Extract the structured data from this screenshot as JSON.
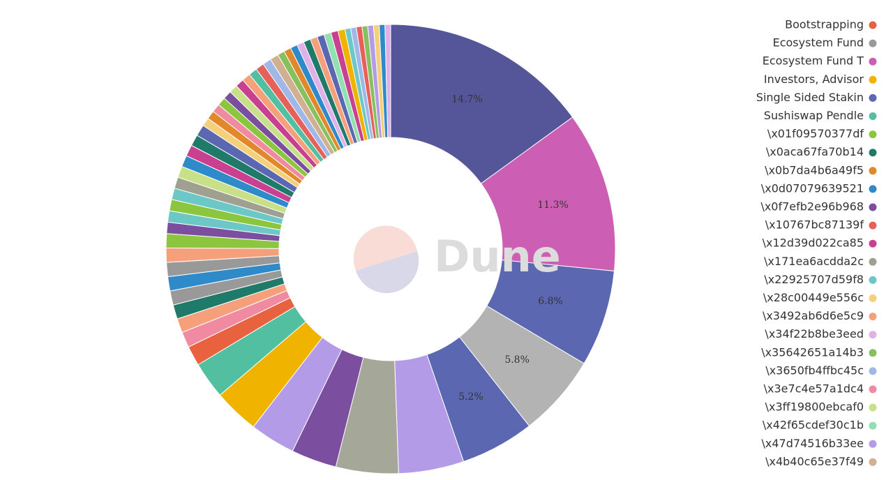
{
  "chart_data": {
    "type": "donut",
    "watermark": "Dune",
    "values": [
      14.7,
      11.3,
      6.8,
      5.8,
      5.2,
      4.6,
      4.4,
      3.2,
      3.2,
      3.2,
      2.6,
      1.4,
      1.1,
      1.0,
      1.0,
      1.0,
      1.0,
      1.0,
      1.0,
      1.0,
      0.8,
      0.8,
      0.8,
      0.8,
      0.8,
      0.8,
      0.8,
      0.8,
      0.8,
      0.8,
      0.6,
      0.6,
      0.6,
      0.6,
      0.6,
      0.6,
      0.6,
      0.6,
      0.6,
      0.6,
      0.6,
      0.6,
      0.5,
      0.5,
      0.5,
      0.5,
      0.5,
      0.5,
      0.5,
      0.5,
      0.5,
      0.5,
      0.4,
      0.4,
      0.4,
      0.4,
      0.4,
      0.4,
      0.4,
      0.4
    ],
    "value_labels": [
      "14.7%",
      "11.3%",
      "6.8%",
      "5.8%",
      "5.2%",
      null,
      null,
      null,
      null,
      null,
      null,
      null,
      null,
      null,
      null,
      null,
      null,
      null,
      null,
      null,
      null,
      null,
      null,
      null,
      null,
      null,
      null,
      null,
      null,
      null,
      null,
      null,
      null,
      null,
      null,
      null,
      null,
      null,
      null,
      null,
      null,
      null,
      null,
      null,
      null,
      null,
      null,
      null,
      null,
      null,
      null,
      null,
      null,
      null,
      null,
      null,
      null,
      null,
      null,
      null
    ],
    "colors": [
      "#55559a",
      "#cc5fb4",
      "#5b67b0",
      "#b3b3b3",
      "#5b67b0",
      "#b39be8",
      "#a5a898",
      "#7b4ea0",
      "#b39be8",
      "#f0b400",
      "#52bfa0",
      "#e8623f",
      "#f08aa0",
      "#f5a07a",
      "#207a6a",
      "#999999",
      "#2e8ac8",
      "#999999",
      "#f5a07a",
      "#8cc63f",
      "#7b4ea0",
      "#6cc7c7",
      "#8cc63f",
      "#6cc7c7",
      "#a0a090",
      "#c8e088",
      "#2e8ac8",
      "#c8408f",
      "#207a6a",
      "#5b67b0",
      "#f5d07a",
      "#e0882a",
      "#f08aa0",
      "#8cc63f",
      "#7b4ea0",
      "#c8e088",
      "#c8408f",
      "#f5a07a",
      "#52bfa0",
      "#e8605a",
      "#a0b8e8",
      "#d0b090",
      "#88c060",
      "#e0882a",
      "#2e8ac8",
      "#e0b0e8",
      "#207a6a",
      "#f5a07a",
      "#5b67b0",
      "#90e0b0",
      "#c8408f",
      "#f0b400",
      "#6cc7c7",
      "#a0b8e8",
      "#e8605a",
      "#88c060",
      "#b39be8",
      "#f5d07a",
      "#2e8ac8",
      "#e0b0e8"
    ],
    "legend": [
      {
        "name": "Bootstrapping",
        "color": "#e8623f"
      },
      {
        "name": "Ecosystem Fund",
        "color": "#999999"
      },
      {
        "name": "Ecosystem Fund T",
        "color": "#cc5fb4"
      },
      {
        "name": "Investors, Advisor",
        "color": "#f0b400"
      },
      {
        "name": "Single Sided Stakin",
        "color": "#5b67b0"
      },
      {
        "name": "Sushiswap Pendle",
        "color": "#52bfa0"
      },
      {
        "name": "\\x01f09570377df",
        "color": "#8cc63f"
      },
      {
        "name": "\\x0aca67fa70b14",
        "color": "#207a6a"
      },
      {
        "name": "\\x0b7da4b6a49f5",
        "color": "#e0882a"
      },
      {
        "name": "\\x0d07079639521",
        "color": "#2e8ac8"
      },
      {
        "name": "\\x0f7efb2e96b968",
        "color": "#7b4ea0"
      },
      {
        "name": "\\x10767bc87139f",
        "color": "#e8605a"
      },
      {
        "name": "\\x12d39d022ca85",
        "color": "#c8408f"
      },
      {
        "name": "\\x171ea6acdda2c",
        "color": "#a0a090"
      },
      {
        "name": "\\x22925707d59f8",
        "color": "#6cc7c7"
      },
      {
        "name": "\\x28c00449e556c",
        "color": "#f5d07a"
      },
      {
        "name": "\\x3492ab6d6e5c9",
        "color": "#f5a07a"
      },
      {
        "name": "\\x34f22b8be3eed",
        "color": "#e0b0e8"
      },
      {
        "name": "\\x35642651a14b3",
        "color": "#88c060"
      },
      {
        "name": "\\x3650fb4ffbc45c",
        "color": "#a0b8e8"
      },
      {
        "name": "\\x3e7c4e57a1dc4",
        "color": "#f08aa0"
      },
      {
        "name": "\\x3ff19800ebcaf0",
        "color": "#c8e088"
      },
      {
        "name": "\\x42f65cdef30c1b",
        "color": "#90e0b0"
      },
      {
        "name": "\\x47d74516b33ee",
        "color": "#b39be8"
      },
      {
        "name": "\\x4b40c65e37f49",
        "color": "#d0b090"
      }
    ]
  }
}
